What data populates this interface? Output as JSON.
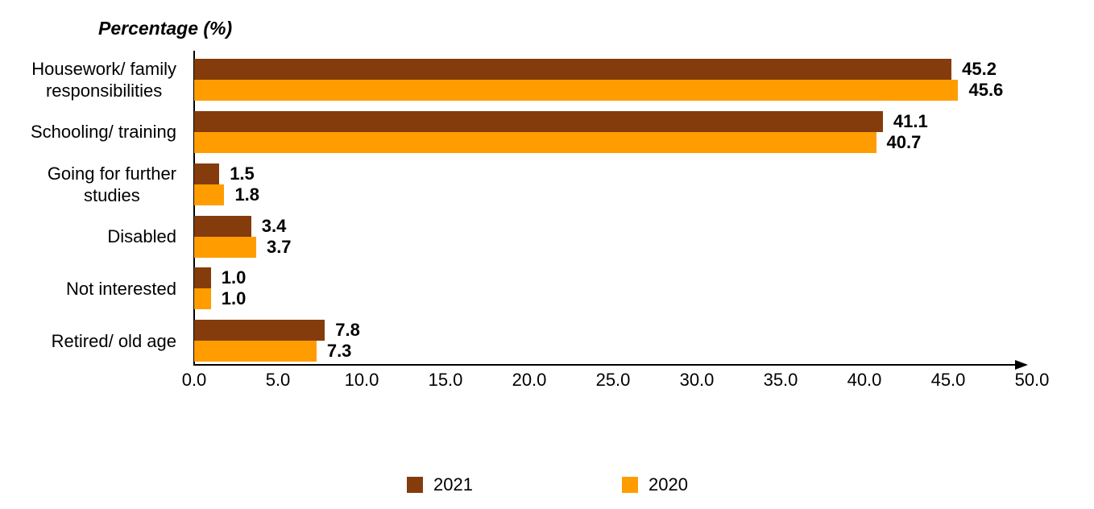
{
  "chart_data": {
    "type": "bar",
    "orientation": "horizontal",
    "title": "Percentage (%)",
    "categories": [
      "Housework/ family\nresponsibilities",
      "Schooling/ training",
      "Going for further\nstudies",
      "Disabled",
      "Not interested",
      "Retired/ old age"
    ],
    "series": [
      {
        "name": "2021",
        "color": "#843C0C",
        "values": [
          45.2,
          41.1,
          1.5,
          3.4,
          1.0,
          7.8
        ]
      },
      {
        "name": "2020",
        "color": "#FF9D00",
        "values": [
          45.6,
          40.7,
          1.8,
          3.7,
          1.0,
          7.3
        ]
      }
    ],
    "xlim": [
      0,
      50
    ],
    "x_tick_step": 5,
    "x_ticks": [
      "0.0",
      "5.0",
      "10.0",
      "15.0",
      "20.0",
      "25.0",
      "30.0",
      "35.0",
      "40.0",
      "45.0",
      "50.0"
    ],
    "value_label_decimals": 1,
    "grid": false,
    "legend_position": "bottom",
    "axis_color": "#000000",
    "text_color": "#000000"
  },
  "legend": {
    "items": [
      {
        "label": "2021",
        "color": "#843C0C"
      },
      {
        "label": "2020",
        "color": "#FF9D00"
      }
    ]
  }
}
